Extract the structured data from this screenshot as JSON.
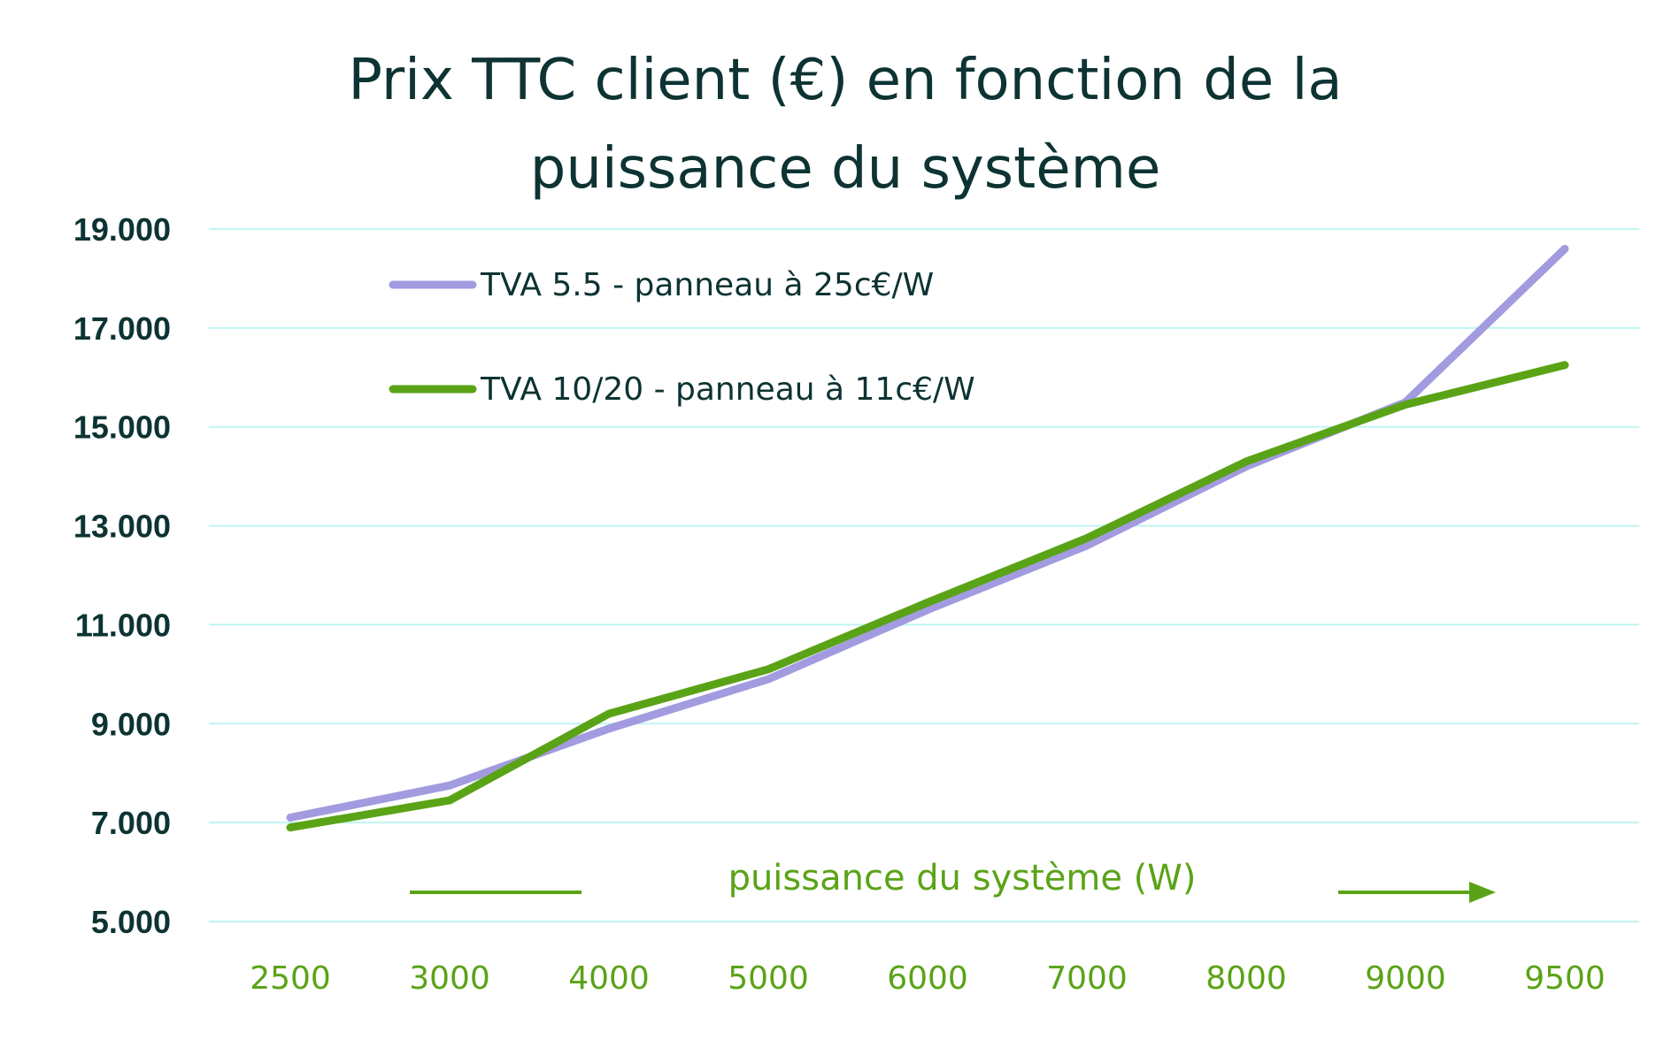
{
  "chart_data": {
    "type": "line",
    "title_line1": "Prix TTC client (€) en fonction de la",
    "title_line2": "puissance du système",
    "xlabel": "puissance du système (W)",
    "ylabel": "",
    "categories": [
      "2500",
      "3000",
      "4000",
      "5000",
      "6000",
      "7000",
      "8000",
      "9000",
      "9500"
    ],
    "yticks": [
      "19.000",
      "17.000",
      "15.000",
      "13.000",
      "11.000",
      "9.000",
      "7.000",
      "5.000"
    ],
    "ylim": [
      5000,
      19000
    ],
    "grid": true,
    "legend_position": "top-left",
    "series": [
      {
        "name": "TVA 5.5 - panneau à 25c€/W",
        "color": "#a29be0",
        "values": [
          7100,
          7750,
          8900,
          9900,
          11300,
          12600,
          14200,
          15500,
          18600
        ]
      },
      {
        "name": "TVA 10/20 - panneau à 11c€/W",
        "color": "#5aa317",
        "values": [
          6900,
          7450,
          9200,
          10100,
          11450,
          12750,
          14300,
          15450,
          16250
        ]
      }
    ],
    "axis_arrow_color": "#5aa317"
  }
}
